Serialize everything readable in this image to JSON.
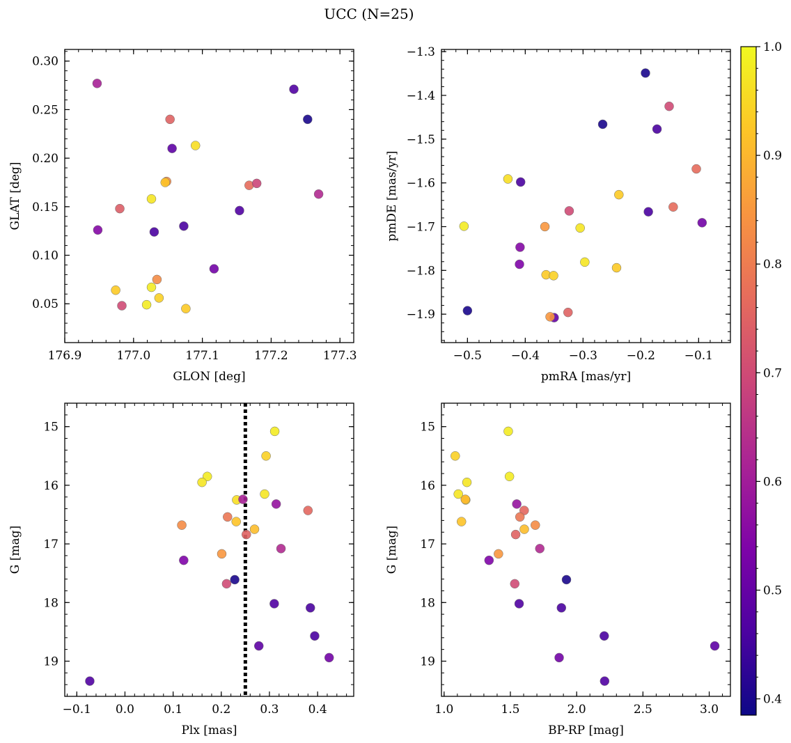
{
  "figure_title": "UCC (N=25)",
  "colorbar": {
    "range": [
      0.385,
      1.0
    ],
    "ticks": [
      "0.4",
      "0.5",
      "0.6",
      "0.7",
      "0.8",
      "0.9",
      "1.0"
    ]
  },
  "chart_data": [
    {
      "type": "scatter",
      "xlabel": "GLON [deg]",
      "ylabel": "GLAT [deg]",
      "xlim": [
        176.9,
        177.32
      ],
      "ylim": [
        0.01,
        0.312
      ],
      "xticks": [
        "176.9",
        "177.0",
        "177.1",
        "177.2",
        "177.3"
      ],
      "yticks": [
        "0.05",
        "0.10",
        "0.15",
        "0.20",
        "0.25",
        "0.30"
      ],
      "y_inverted": false,
      "points": [
        {
          "x": 176.947,
          "y": 0.277,
          "c": 0.61
        },
        {
          "x": 177.233,
          "y": 0.271,
          "c": 0.47
        },
        {
          "x": 177.253,
          "y": 0.24,
          "c": 0.4
        },
        {
          "x": 177.053,
          "y": 0.24,
          "c": 0.75
        },
        {
          "x": 177.056,
          "y": 0.21,
          "c": 0.49
        },
        {
          "x": 177.09,
          "y": 0.213,
          "c": 0.96
        },
        {
          "x": 177.048,
          "y": 0.176,
          "c": 0.83
        },
        {
          "x": 177.046,
          "y": 0.175,
          "c": 0.92
        },
        {
          "x": 177.168,
          "y": 0.172,
          "c": 0.77
        },
        {
          "x": 177.179,
          "y": 0.174,
          "c": 0.69
        },
        {
          "x": 177.269,
          "y": 0.163,
          "c": 0.63
        },
        {
          "x": 177.026,
          "y": 0.158,
          "c": 0.97
        },
        {
          "x": 176.98,
          "y": 0.148,
          "c": 0.74
        },
        {
          "x": 177.154,
          "y": 0.146,
          "c": 0.47
        },
        {
          "x": 176.948,
          "y": 0.126,
          "c": 0.55
        },
        {
          "x": 177.03,
          "y": 0.124,
          "c": 0.46
        },
        {
          "x": 177.073,
          "y": 0.13,
          "c": 0.46
        },
        {
          "x": 177.117,
          "y": 0.086,
          "c": 0.52
        },
        {
          "x": 177.034,
          "y": 0.075,
          "c": 0.83
        },
        {
          "x": 176.974,
          "y": 0.064,
          "c": 0.93
        },
        {
          "x": 177.026,
          "y": 0.067,
          "c": 0.98
        },
        {
          "x": 177.037,
          "y": 0.056,
          "c": 0.94
        },
        {
          "x": 177.019,
          "y": 0.049,
          "c": 0.98
        },
        {
          "x": 176.983,
          "y": 0.048,
          "c": 0.7
        },
        {
          "x": 177.076,
          "y": 0.045,
          "c": 0.93
        }
      ]
    },
    {
      "type": "scatter",
      "xlabel": "pmRA [mas/yr]",
      "ylabel": "pmDE [mas/yr]",
      "xlim": [
        -0.545,
        -0.045
      ],
      "ylim": [
        -1.965,
        -1.295
      ],
      "xticks": [
        "−0.5",
        "−0.4",
        "−0.3",
        "−0.2",
        "−0.1"
      ],
      "yticks": [
        "−1.9",
        "−1.8",
        "−1.7",
        "−1.6",
        "−1.5",
        "−1.4",
        "−1.3"
      ],
      "y_inverted": false,
      "points": [
        {
          "x": -0.192,
          "y": -1.349,
          "c": 0.4
        },
        {
          "x": -0.151,
          "y": -1.425,
          "c": 0.7
        },
        {
          "x": -0.266,
          "y": -1.466,
          "c": 0.4
        },
        {
          "x": -0.172,
          "y": -1.477,
          "c": 0.46
        },
        {
          "x": -0.104,
          "y": -1.568,
          "c": 0.77
        },
        {
          "x": -0.43,
          "y": -1.591,
          "c": 0.96
        },
        {
          "x": -0.408,
          "y": -1.598,
          "c": 0.46
        },
        {
          "x": -0.238,
          "y": -1.627,
          "c": 0.93
        },
        {
          "x": -0.144,
          "y": -1.655,
          "c": 0.77
        },
        {
          "x": -0.324,
          "y": -1.664,
          "c": 0.7
        },
        {
          "x": -0.187,
          "y": -1.666,
          "c": 0.46
        },
        {
          "x": -0.094,
          "y": -1.691,
          "c": 0.52
        },
        {
          "x": -0.506,
          "y": -1.699,
          "c": 0.98
        },
        {
          "x": -0.366,
          "y": -1.7,
          "c": 0.85
        },
        {
          "x": -0.305,
          "y": -1.703,
          "c": 0.97
        },
        {
          "x": -0.409,
          "y": -1.747,
          "c": 0.55
        },
        {
          "x": -0.297,
          "y": -1.781,
          "c": 0.97
        },
        {
          "x": -0.41,
          "y": -1.786,
          "c": 0.54
        },
        {
          "x": -0.242,
          "y": -1.794,
          "c": 0.93
        },
        {
          "x": -0.364,
          "y": -1.81,
          "c": 0.93
        },
        {
          "x": -0.351,
          "y": -1.812,
          "c": 0.94
        },
        {
          "x": -0.5,
          "y": -1.892,
          "c": 0.4
        },
        {
          "x": -0.326,
          "y": -1.896,
          "c": 0.75
        },
        {
          "x": -0.35,
          "y": -1.908,
          "c": 0.5
        },
        {
          "x": -0.357,
          "y": -1.906,
          "c": 0.85
        }
      ]
    },
    {
      "type": "scatter",
      "xlabel": "Plx [mas]",
      "ylabel": "G [mag]",
      "xlim": [
        -0.125,
        0.475
      ],
      "ylim": [
        19.6,
        14.6
      ],
      "xticks": [
        "−0.1",
        "0.0",
        "0.1",
        "0.2",
        "0.3",
        "0.4"
      ],
      "yticks": [
        "15",
        "16",
        "17",
        "18",
        "19"
      ],
      "y_inverted": true,
      "vline": 0.25,
      "points": [
        {
          "x": 0.311,
          "y": 15.08,
          "c": 0.98
        },
        {
          "x": 0.293,
          "y": 15.5,
          "c": 0.94
        },
        {
          "x": 0.171,
          "y": 15.85,
          "c": 0.98
        },
        {
          "x": 0.16,
          "y": 15.95,
          "c": 0.97
        },
        {
          "x": 0.29,
          "y": 16.15,
          "c": 0.97
        },
        {
          "x": 0.232,
          "y": 16.25,
          "c": 0.96
        },
        {
          "x": 0.245,
          "y": 16.24,
          "c": 0.61
        },
        {
          "x": 0.314,
          "y": 16.32,
          "c": 0.58
        },
        {
          "x": 0.38,
          "y": 16.43,
          "c": 0.76
        },
        {
          "x": 0.213,
          "y": 16.54,
          "c": 0.79
        },
        {
          "x": 0.231,
          "y": 16.62,
          "c": 0.92
        },
        {
          "x": 0.118,
          "y": 16.68,
          "c": 0.83
        },
        {
          "x": 0.269,
          "y": 16.75,
          "c": 0.91
        },
        {
          "x": 0.252,
          "y": 16.84,
          "c": 0.75
        },
        {
          "x": 0.324,
          "y": 17.08,
          "c": 0.63
        },
        {
          "x": 0.201,
          "y": 17.17,
          "c": 0.85
        },
        {
          "x": 0.122,
          "y": 17.28,
          "c": 0.54
        },
        {
          "x": 0.228,
          "y": 17.61,
          "c": 0.4
        },
        {
          "x": 0.211,
          "y": 17.68,
          "c": 0.7
        },
        {
          "x": 0.31,
          "y": 18.02,
          "c": 0.47
        },
        {
          "x": 0.385,
          "y": 18.09,
          "c": 0.46
        },
        {
          "x": 0.394,
          "y": 18.57,
          "c": 0.46
        },
        {
          "x": 0.278,
          "y": 18.74,
          "c": 0.49
        },
        {
          "x": 0.424,
          "y": 18.94,
          "c": 0.52
        },
        {
          "x": -0.073,
          "y": 19.34,
          "c": 0.47
        }
      ]
    },
    {
      "type": "scatter",
      "xlabel": "BP-RP [mag]",
      "ylabel": "G [mag]",
      "xlim": [
        0.98,
        3.16
      ],
      "ylim": [
        19.6,
        14.6
      ],
      "xticks": [
        "1.0",
        "1.5",
        "2.0",
        "2.5",
        "3.0"
      ],
      "yticks": [
        "15",
        "16",
        "17",
        "18",
        "19"
      ],
      "y_inverted": true,
      "points": [
        {
          "x": 1.484,
          "y": 15.08,
          "c": 0.98
        },
        {
          "x": 1.084,
          "y": 15.5,
          "c": 0.94
        },
        {
          "x": 1.172,
          "y": 15.95,
          "c": 0.97
        },
        {
          "x": 1.493,
          "y": 15.85,
          "c": 0.98
        },
        {
          "x": 1.107,
          "y": 16.15,
          "c": 0.97
        },
        {
          "x": 1.163,
          "y": 16.25,
          "c": 0.96
        },
        {
          "x": 1.16,
          "y": 16.24,
          "c": 0.9
        },
        {
          "x": 1.548,
          "y": 16.32,
          "c": 0.58
        },
        {
          "x": 1.604,
          "y": 16.43,
          "c": 0.76
        },
        {
          "x": 1.572,
          "y": 16.54,
          "c": 0.79
        },
        {
          "x": 1.131,
          "y": 16.62,
          "c": 0.92
        },
        {
          "x": 1.688,
          "y": 16.68,
          "c": 0.83
        },
        {
          "x": 1.605,
          "y": 16.75,
          "c": 0.91
        },
        {
          "x": 1.54,
          "y": 16.84,
          "c": 0.75
        },
        {
          "x": 1.722,
          "y": 17.08,
          "c": 0.63
        },
        {
          "x": 1.41,
          "y": 17.17,
          "c": 0.85
        },
        {
          "x": 1.339,
          "y": 17.28,
          "c": 0.54
        },
        {
          "x": 1.923,
          "y": 17.61,
          "c": 0.4
        },
        {
          "x": 1.533,
          "y": 17.68,
          "c": 0.7
        },
        {
          "x": 1.566,
          "y": 18.02,
          "c": 0.47
        },
        {
          "x": 1.885,
          "y": 18.09,
          "c": 0.46
        },
        {
          "x": 2.208,
          "y": 18.57,
          "c": 0.46
        },
        {
          "x": 3.042,
          "y": 18.74,
          "c": 0.49
        },
        {
          "x": 1.868,
          "y": 18.94,
          "c": 0.52
        },
        {
          "x": 2.211,
          "y": 19.34,
          "c": 0.47
        }
      ]
    }
  ]
}
